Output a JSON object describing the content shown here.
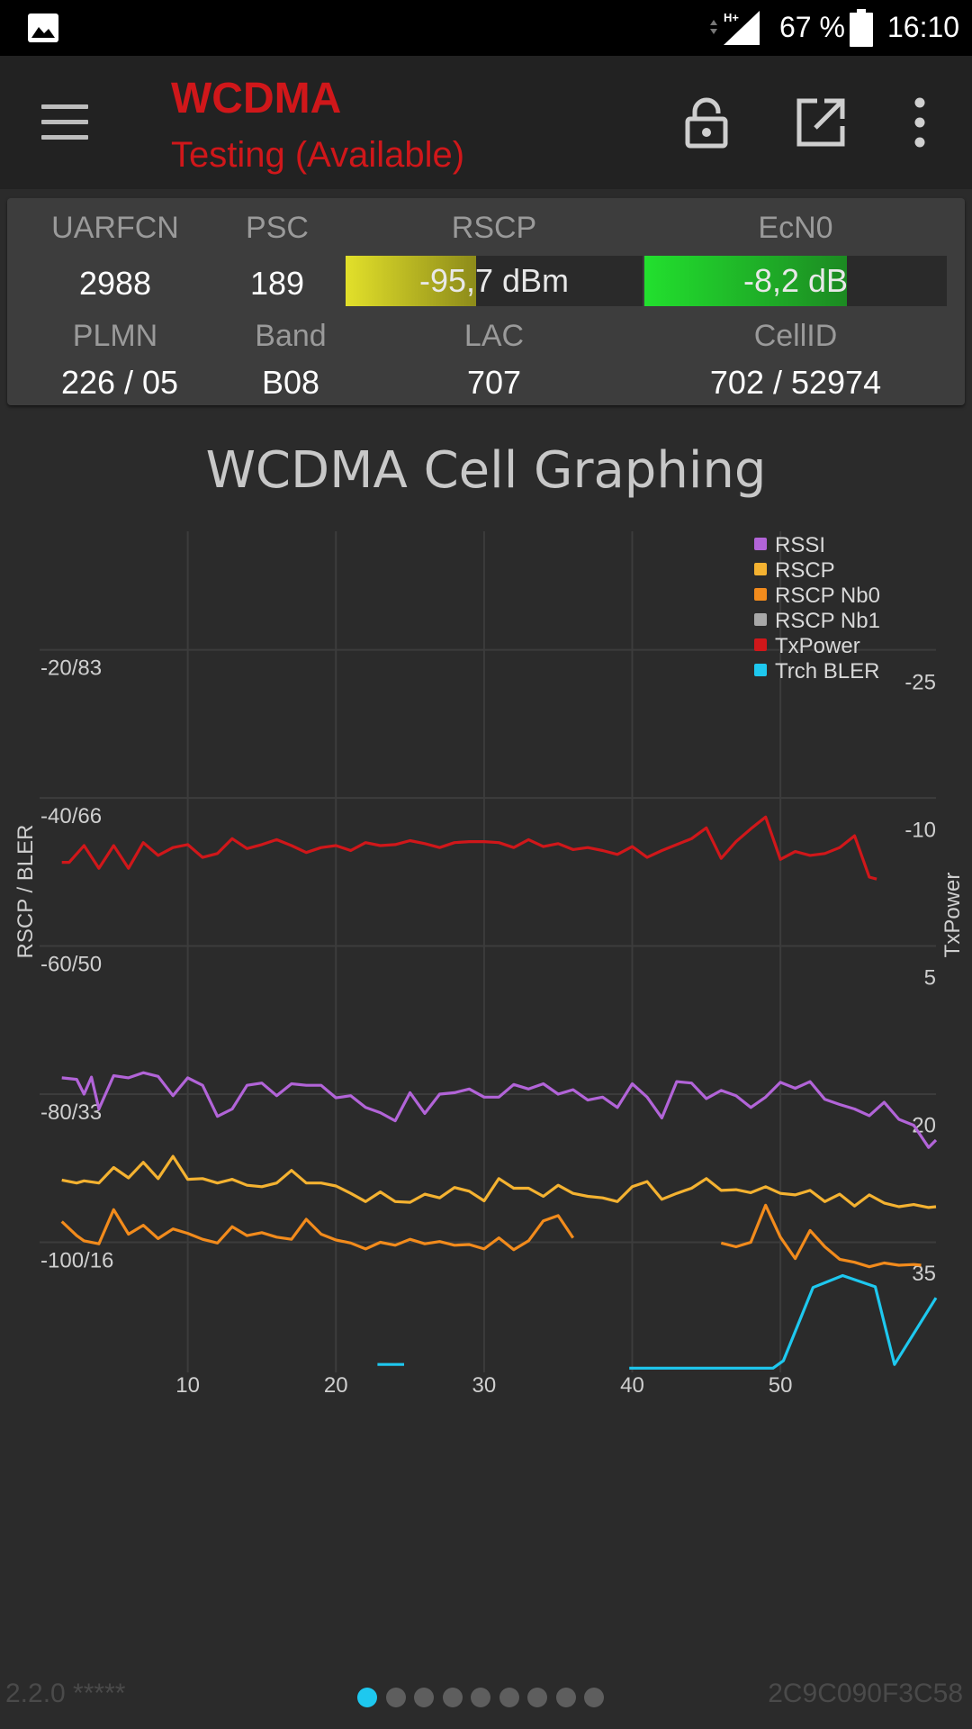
{
  "status_bar": {
    "network_type": "H+",
    "battery_percent": "67 %",
    "battery_level": 0.67,
    "time": "16:10"
  },
  "toolbar": {
    "title": "WCDMA",
    "subtitle": "Testing (Available)",
    "icons": [
      "menu-icon",
      "lock-icon",
      "open-in-new-icon",
      "more-vert-icon"
    ],
    "title_color": "#d0171a"
  },
  "info": {
    "uarfcn_label": "UARFCN",
    "uarfcn_value": "2988",
    "psc_label": "PSC",
    "psc_value": "189",
    "rscp_label": "RSCP",
    "rscp_value": "-95,7 dBm",
    "rscp_level": 0.44,
    "ecn0_label": "EcN0",
    "ecn0_value": "-8,2 dB",
    "ecn0_level": 0.67,
    "plmn_label": "PLMN",
    "plmn_value": "226 / 05",
    "band_label": "Band",
    "band_value": "B08",
    "lac_label": "LAC",
    "lac_value": "707",
    "cellid_label": "CellID",
    "cellid_value": "702 / 52974"
  },
  "chart_data": {
    "type": "line",
    "title": "WCDMA Cell Graphing",
    "xlabel": "",
    "ylabel": "RSCP / BLER",
    "y2label": "TxPower",
    "xlim": [
      0,
      60.5
    ],
    "ylim": [
      -120,
      -4
    ],
    "y2lim": [
      -39.2,
      48
    ],
    "xticks": [
      "10",
      "20",
      "30",
      "40",
      "50"
    ],
    "yticks": [
      "-20/83",
      "-40/66",
      "-60/50",
      "-80/33",
      "-100/16"
    ],
    "y2ticks": [
      "-25",
      "-10",
      "5",
      "20",
      "35"
    ],
    "grid": true,
    "legend_position": "top-right",
    "series": [
      {
        "name": "RSSI",
        "color": "#b264d8",
        "axis": "left",
        "points": [
          [
            1.5,
            -77.8
          ],
          [
            2.5,
            -78.0
          ],
          [
            3,
            -80.0
          ],
          [
            3.5,
            -77.7
          ],
          [
            4,
            -82.0
          ],
          [
            5,
            -77.5
          ],
          [
            6,
            -77.8
          ],
          [
            7,
            -77.1
          ],
          [
            8,
            -77.6
          ],
          [
            9,
            -80.2
          ],
          [
            10,
            -77.8
          ],
          [
            11,
            -78.8
          ],
          [
            12,
            -83.0
          ],
          [
            13,
            -82.0
          ],
          [
            14,
            -78.8
          ],
          [
            15,
            -78.5
          ],
          [
            16,
            -80.2
          ],
          [
            17,
            -78.6
          ],
          [
            18,
            -78.8
          ],
          [
            19,
            -78.8
          ],
          [
            20,
            -80.5
          ],
          [
            21,
            -80.2
          ],
          [
            22,
            -81.8
          ],
          [
            23,
            -82.5
          ],
          [
            24,
            -83.6
          ],
          [
            25,
            -79.8
          ],
          [
            26,
            -82.6
          ],
          [
            27,
            -80.0
          ],
          [
            28,
            -79.8
          ],
          [
            29,
            -79.3
          ],
          [
            30,
            -80.4
          ],
          [
            31,
            -80.4
          ],
          [
            32,
            -78.7
          ],
          [
            33,
            -79.3
          ],
          [
            34,
            -78.6
          ],
          [
            35,
            -80.0
          ],
          [
            36,
            -79.4
          ],
          [
            37,
            -80.8
          ],
          [
            38,
            -80.4
          ],
          [
            39,
            -81.8
          ],
          [
            40,
            -78.6
          ],
          [
            41,
            -80.4
          ],
          [
            42,
            -83.2
          ],
          [
            43,
            -78.3
          ],
          [
            44,
            -78.5
          ],
          [
            45,
            -80.6
          ],
          [
            46,
            -79.5
          ],
          [
            47,
            -80.2
          ],
          [
            48,
            -81.8
          ],
          [
            49,
            -80.4
          ],
          [
            50,
            -78.4
          ],
          [
            51,
            -79.2
          ],
          [
            52,
            -78.3
          ],
          [
            53,
            -80.7
          ],
          [
            54,
            -81.4
          ],
          [
            55,
            -82.0
          ],
          [
            56,
            -82.9
          ],
          [
            57,
            -81.1
          ],
          [
            58,
            -83.4
          ],
          [
            59,
            -84.2
          ],
          [
            60,
            -87.2
          ],
          [
            60.5,
            -86.2
          ]
        ]
      },
      {
        "name": "RSCP",
        "color": "#f4b231",
        "axis": "left",
        "points": [
          [
            1.5,
            -91.6
          ],
          [
            2.5,
            -92.0
          ],
          [
            3,
            -91.7
          ],
          [
            4,
            -92.0
          ],
          [
            5,
            -89.9
          ],
          [
            6,
            -91.3
          ],
          [
            7,
            -89.2
          ],
          [
            8,
            -91.4
          ],
          [
            9,
            -88.4
          ],
          [
            10,
            -91.5
          ],
          [
            11,
            -91.4
          ],
          [
            12,
            -92.0
          ],
          [
            13,
            -91.5
          ],
          [
            14,
            -92.3
          ],
          [
            15,
            -92.5
          ],
          [
            16,
            -92.0
          ],
          [
            17,
            -90.3
          ],
          [
            18,
            -92.0
          ],
          [
            19,
            -92.0
          ],
          [
            20,
            -92.4
          ],
          [
            21,
            -93.4
          ],
          [
            22,
            -94.5
          ],
          [
            23,
            -93.2
          ],
          [
            24,
            -94.5
          ],
          [
            25,
            -94.6
          ],
          [
            26,
            -93.5
          ],
          [
            27,
            -94.0
          ],
          [
            28,
            -92.6
          ],
          [
            29,
            -93.1
          ],
          [
            30,
            -94.4
          ],
          [
            31,
            -91.4
          ],
          [
            32,
            -92.7
          ],
          [
            33,
            -92.7
          ],
          [
            34,
            -93.8
          ],
          [
            35,
            -92.3
          ],
          [
            36,
            -93.4
          ],
          [
            37,
            -93.8
          ],
          [
            38,
            -94.0
          ],
          [
            39,
            -94.5
          ],
          [
            40,
            -92.5
          ],
          [
            41,
            -91.8
          ],
          [
            42,
            -94.2
          ],
          [
            43,
            -93.4
          ],
          [
            44,
            -92.7
          ],
          [
            45,
            -91.4
          ],
          [
            46,
            -93.0
          ],
          [
            47,
            -92.9
          ],
          [
            48,
            -93.3
          ],
          [
            49,
            -92.5
          ],
          [
            50,
            -93.4
          ],
          [
            51,
            -93.6
          ],
          [
            52,
            -93.0
          ],
          [
            53,
            -94.5
          ],
          [
            54,
            -93.5
          ],
          [
            55,
            -95.1
          ],
          [
            56,
            -93.6
          ],
          [
            57,
            -94.7
          ],
          [
            58,
            -95.2
          ],
          [
            59,
            -94.9
          ],
          [
            60,
            -95.3
          ],
          [
            60.5,
            -95.2
          ]
        ]
      },
      {
        "name": "RSCP Nb0",
        "color": "#f28b1c",
        "axis": "left",
        "points": [
          [
            1.5,
            -97.2
          ],
          [
            2.5,
            -99.1
          ],
          [
            3,
            -99.8
          ],
          [
            4,
            -100.2
          ],
          [
            5,
            -95.6
          ],
          [
            6,
            -98.9
          ],
          [
            7,
            -97.7
          ],
          [
            8,
            -99.5
          ],
          [
            9,
            -98.2
          ],
          [
            10,
            -98.8
          ],
          [
            11,
            -99.6
          ],
          [
            12,
            -100.1
          ],
          [
            13,
            -97.9
          ],
          [
            14,
            -99.1
          ],
          [
            15,
            -98.7
          ],
          [
            16,
            -99.3
          ],
          [
            17,
            -99.6
          ],
          [
            18,
            -96.9
          ],
          [
            19,
            -98.9
          ],
          [
            20,
            -99.7
          ],
          [
            21,
            -100.1
          ],
          [
            22,
            -100.9
          ],
          [
            23,
            -100.0
          ],
          [
            24,
            -100.4
          ],
          [
            25,
            -99.6
          ],
          [
            26,
            -100.2
          ],
          [
            27,
            -99.9
          ],
          [
            28,
            -100.4
          ],
          [
            29,
            -100.3
          ],
          [
            30,
            -100.9
          ],
          [
            31,
            -99.4
          ],
          [
            32,
            -101.0
          ],
          [
            33,
            -99.8
          ],
          [
            34,
            -97.1
          ],
          [
            35,
            -96.4
          ],
          [
            36,
            -99.4
          ],
          [
            37,
            null
          ],
          [
            38,
            null
          ],
          [
            39,
            null
          ],
          [
            40,
            null
          ],
          [
            41,
            null
          ],
          [
            42,
            null
          ],
          [
            43,
            null
          ],
          [
            44,
            null
          ],
          [
            45,
            null
          ],
          [
            46,
            -100.1
          ],
          [
            47,
            -100.6
          ],
          [
            48,
            -100.0
          ],
          [
            49,
            -95.0
          ],
          [
            50,
            -99.3
          ],
          [
            51,
            -102.2
          ],
          [
            52,
            -98.4
          ],
          [
            53,
            -100.6
          ],
          [
            54,
            -102.3
          ],
          [
            55,
            -102.7
          ],
          [
            56,
            -103.3
          ],
          [
            57,
            -102.8
          ],
          [
            58,
            -103.1
          ],
          [
            59,
            -103.0
          ],
          [
            59.5,
            -103.1
          ]
        ]
      },
      {
        "name": "RSCP Nb1",
        "color": "#a8a8a8",
        "axis": "left",
        "points": []
      },
      {
        "name": "TxPower",
        "color": "#d0171a",
        "axis": "right",
        "points": [
          [
            1.5,
            -5.6
          ],
          [
            2,
            -5.6
          ],
          [
            3,
            -7.3
          ],
          [
            4,
            -5.0
          ],
          [
            5,
            -7.3
          ],
          [
            6,
            -5.0
          ],
          [
            7,
            -7.6
          ],
          [
            8,
            -6.3
          ],
          [
            9,
            -7.1
          ],
          [
            10,
            -7.4
          ],
          [
            11,
            -6.1
          ],
          [
            12,
            -6.5
          ],
          [
            13,
            -8.0
          ],
          [
            14,
            -7.0
          ],
          [
            15,
            -7.4
          ],
          [
            16,
            -7.9
          ],
          [
            17,
            -7.3
          ],
          [
            18,
            -6.6
          ],
          [
            19,
            -7.1
          ],
          [
            20,
            -7.3
          ],
          [
            21,
            -6.8
          ],
          [
            22,
            -7.6
          ],
          [
            23,
            -7.3
          ],
          [
            24,
            -7.4
          ],
          [
            25,
            -7.8
          ],
          [
            26,
            -7.5
          ],
          [
            27,
            -7.1
          ],
          [
            28,
            -7.6
          ],
          [
            29,
            -7.7
          ],
          [
            30,
            -7.7
          ],
          [
            31,
            -7.6
          ],
          [
            32,
            -7.1
          ],
          [
            33,
            -7.9
          ],
          [
            34,
            -7.2
          ],
          [
            35,
            -7.5
          ],
          [
            36,
            -6.9
          ],
          [
            37,
            -7.1
          ],
          [
            38,
            -6.8
          ],
          [
            39,
            -6.4
          ],
          [
            40,
            -7.2
          ],
          [
            41,
            -6.1
          ],
          [
            42,
            -6.8
          ],
          [
            43,
            -7.4
          ],
          [
            44,
            -8.0
          ],
          [
            45,
            -9.1
          ],
          [
            46,
            -6.0
          ],
          [
            47,
            -7.7
          ],
          [
            48,
            -9.0
          ],
          [
            49,
            -10.2
          ],
          [
            50,
            -5.9
          ],
          [
            51,
            -6.7
          ],
          [
            52,
            -6.3
          ],
          [
            53,
            -6.5
          ],
          [
            54,
            -7.1
          ],
          [
            55,
            -8.3
          ],
          [
            56,
            -4.1
          ],
          [
            56.5,
            -3.9
          ]
        ]
      },
      {
        "name": "Trch BLER",
        "color": "#1ec8ef",
        "axis": "left",
        "points": [
          [
            22.8,
            -116.5
          ],
          [
            24.6,
            -116.5
          ],
          [
            null,
            null
          ],
          [
            39.8,
            -117.0
          ],
          [
            49.5,
            -117.0
          ],
          [
            50.2,
            -116.0
          ],
          [
            52.2,
            -106.1
          ],
          [
            54.2,
            -104.5
          ],
          [
            56.4,
            -106.0
          ],
          [
            57.7,
            -116.5
          ],
          [
            60.5,
            -107.5
          ]
        ]
      }
    ]
  },
  "footer": {
    "version": "2.2.0 *****",
    "device_id": "2C9C090F3C58",
    "page_count": 9,
    "active_page": 0
  }
}
